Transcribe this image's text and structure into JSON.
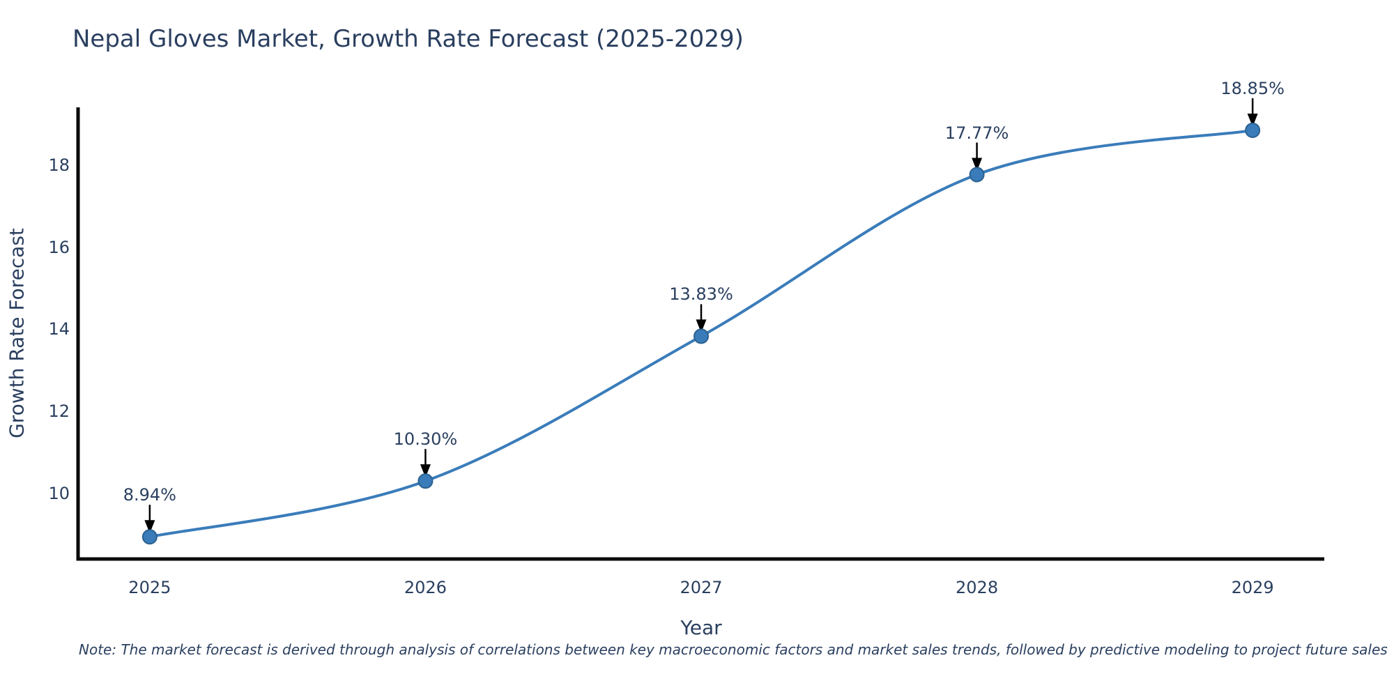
{
  "title": "Nepal Gloves Market, Growth Rate Forecast (2025-2029)",
  "note": "Note: The market forecast is derived through analysis of correlations between key macroeconomic factors and market sales trends, followed by predictive modeling to project future sales",
  "colors": {
    "text": "#2a3f5f",
    "line": "#3a7cba",
    "marker_fill": "#3a7cba",
    "marker_edge": "#2c618f",
    "axis": "#0a0a0a",
    "arrow": "#000000",
    "background": "#ffffff"
  },
  "chart_data": {
    "type": "line",
    "title": "Nepal Gloves Market, Growth Rate Forecast (2025-2029)",
    "xlabel": "Year",
    "ylabel": "Growth Rate Forecast",
    "x": [
      2025,
      2026,
      2027,
      2028,
      2029
    ],
    "values": [
      8.94,
      10.3,
      13.83,
      17.77,
      18.85
    ],
    "point_labels": [
      "8.94%",
      "10.30%",
      "13.83%",
      "17.77%",
      "18.85%"
    ],
    "xticks": [
      "2025",
      "2026",
      "2027",
      "2028",
      "2029"
    ],
    "xtick_values": [
      2025,
      2026,
      2027,
      2028,
      2029
    ],
    "yticks": [
      "10",
      "12",
      "14",
      "16",
      "18"
    ],
    "ytick_values": [
      10,
      12,
      14,
      16,
      18
    ],
    "xlim": [
      2024.74,
      2029.26
    ],
    "ylim": [
      8.4,
      19.41
    ],
    "line_shape": "spline",
    "markers": true,
    "grid": false,
    "legend": false
  }
}
